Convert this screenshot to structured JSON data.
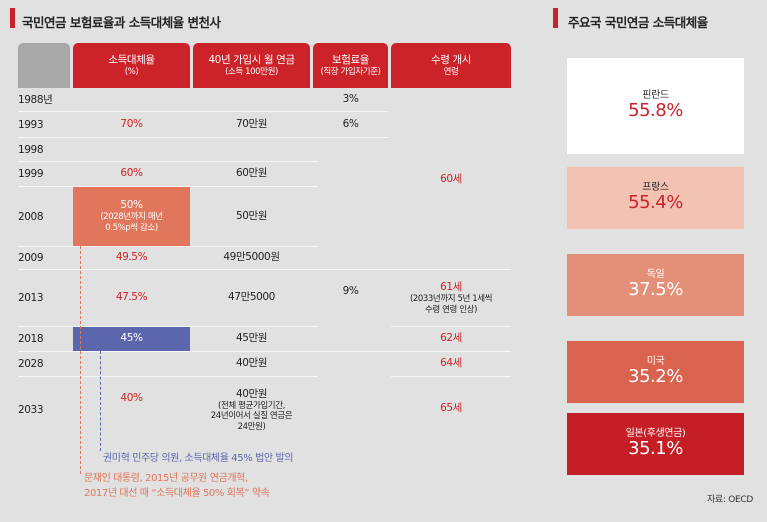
{
  "left_title": "국민연금 보험료율과 소득대체율 변천사",
  "right_title": "주요국 국민연금 소득대체율",
  "headers": {
    "replacement": {
      "main": "소득대체율",
      "sub": "(%)"
    },
    "pension": {
      "main": "40년 가입시 월 연금",
      "sub": "(소득 100만원)"
    },
    "premium": {
      "main": "보험료율",
      "sub": "(직장 가입자기준)"
    },
    "age": {
      "main": "수령 개시",
      "sub": "연령"
    }
  },
  "years": [
    "1988년",
    "1993",
    "1998",
    "1999",
    "2008",
    "2009",
    "2013",
    "2018",
    "2028",
    "2033"
  ],
  "replacement": {
    "r1993": "70%",
    "r1999": "60%",
    "r2008_main": "50%",
    "r2008_sub1": "(2028년까지 매년",
    "r2008_sub2": "0.5%p씩 감소)",
    "r2009": "49.5%",
    "r2013": "47.5%",
    "r2018": "45%",
    "r2033": "40%"
  },
  "pension": {
    "p1993": "70만원",
    "p1999": "60만원",
    "p2008": "50만원",
    "p2009": "49만5000원",
    "p2013": "47만5000",
    "p2018": "45만원",
    "p2028": "40만원",
    "p2033_main": "40만원",
    "p2033_sub1": "(전체 평균가입기간,",
    "p2033_sub2": "24년이어서 실질 연금은",
    "p2033_sub3": "24만원)"
  },
  "premium": {
    "pr1988": "3%",
    "pr1993": "6%",
    "pr1998": "9%"
  },
  "age": {
    "a1999": "60세",
    "a2013_main": "61세",
    "a2013_sub1": "(2033년까지 5년 1세씩",
    "a2013_sub2": "수령 연령 인상)",
    "a2018": "62세",
    "a2028": "64세",
    "a2033": "65세"
  },
  "notes": {
    "blue": "권미혁 민주당 의원, 소득대체율 45% 법안 발의",
    "orange1": "문재인 대통령, 2015년 공무원 연금개혁,",
    "orange2": "2017년 대선 때 “소득대체율 50% 회복” 약속"
  },
  "colors": {
    "accent_red": "#cc2229",
    "orange": "#e0765c",
    "blue": "#5c66ad",
    "finland": "#ffffff",
    "france": "#f2c2b3",
    "germany": "#e49078",
    "usa": "#d9634f",
    "japan": "#c41e26"
  },
  "chart_data": {
    "type": "bar",
    "title": "주요국 국민연금 소득대체율",
    "categories": [
      "핀란드",
      "프랑스",
      "독일",
      "미국",
      "일본(후생연금)"
    ],
    "values": [
      55.8,
      55.4,
      37.5,
      35.2,
      35.1
    ],
    "value_labels": [
      "55.8%",
      "55.4%",
      "37.5%",
      "35.2%",
      "35.1%"
    ],
    "source": "자료: OECD"
  }
}
